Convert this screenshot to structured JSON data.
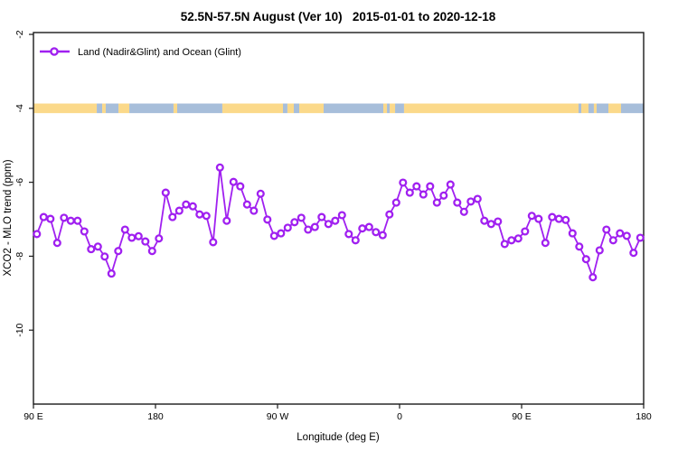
{
  "title": "52.5N-57.5N August (Ver 10)   2015-01-01 to 2020-12-18",
  "legend": {
    "label": "Land (Nadir&Glint) and Ocean (Glint)",
    "marker": "open-circle-on-line"
  },
  "colors": {
    "series": "#A020F0",
    "land_strip": "#FBD98A",
    "ocean_strip": "#A7BEDA",
    "axis": "#1a1a1a",
    "background": "#FFFFFF"
  },
  "chart_data": {
    "type": "line",
    "title": "52.5N-57.5N August (Ver 10)   2015-01-01 to 2020-12-18",
    "xlabel": "Longitude (deg E)",
    "ylabel": "XCO2 - MLO trend (ppm)",
    "x_tick_labels": [
      "90 E",
      "180",
      "90 W",
      "0",
      "90 E",
      "180"
    ],
    "x_tick_positions": [
      0,
      90,
      180,
      270,
      360,
      450
    ],
    "y_ticks": [
      -2,
      -4,
      -6,
      -8,
      -10
    ],
    "xlim": [
      0,
      450
    ],
    "ylim": [
      -12,
      -1.95
    ],
    "grid": false,
    "legend_position": "top-left-inside",
    "series": [
      {
        "name": "Land (Nadir&Glint) and Ocean (Glint)",
        "color": "#A020F0",
        "marker": "open-circle",
        "x_start": 2.5,
        "x_step": 5,
        "values": [
          -7.4,
          -6.94,
          -6.99,
          -7.64,
          -6.96,
          -7.04,
          -7.04,
          -7.33,
          -7.81,
          -7.74,
          -8.01,
          -8.47,
          -7.86,
          -7.28,
          -7.5,
          -7.46,
          -7.6,
          -7.86,
          -7.52,
          -6.28,
          -6.94,
          -6.77,
          -6.6,
          -6.65,
          -6.87,
          -6.91,
          -7.62,
          -5.6,
          -7.04,
          -5.99,
          -6.11,
          -6.6,
          -6.77,
          -6.31,
          -7.01,
          -7.45,
          -7.38,
          -7.23,
          -7.08,
          -6.96,
          -7.28,
          -7.21,
          -6.94,
          -7.13,
          -7.04,
          -6.89,
          -7.4,
          -7.57,
          -7.25,
          -7.21,
          -7.35,
          -7.43,
          -6.87,
          -6.55,
          -6.01,
          -6.28,
          -6.11,
          -6.33,
          -6.11,
          -6.55,
          -6.36,
          -6.06,
          -6.55,
          -6.8,
          -6.52,
          -6.45,
          -7.04,
          -7.13,
          -7.06,
          -7.67,
          -7.57,
          -7.52,
          -7.33,
          -6.91,
          -6.99,
          -7.64,
          -6.94,
          -6.99,
          -7.02,
          -7.38,
          -7.74,
          -8.08,
          -8.57,
          -7.84,
          -7.28,
          -7.57,
          -7.38,
          -7.45,
          -7.91,
          -7.5
        ]
      }
    ],
    "map_strip": {
      "description": "land/ocean mask strip drawn at y = -4",
      "y_center": -4,
      "land_color": "#FBD98A",
      "ocean_color": "#A7BEDA",
      "segments": [
        {
          "type": "land",
          "from": 0,
          "to": 46.7
        },
        {
          "type": "ocean",
          "from": 46.7,
          "to": 50.7
        },
        {
          "type": "land",
          "from": 50.7,
          "to": 53.3
        },
        {
          "type": "ocean",
          "from": 53.3,
          "to": 62.7
        },
        {
          "type": "land",
          "from": 62.7,
          "to": 70.7
        },
        {
          "type": "ocean",
          "from": 70.7,
          "to": 103.3
        },
        {
          "type": "land",
          "from": 103.3,
          "to": 106.0
        },
        {
          "type": "ocean",
          "from": 106.0,
          "to": 139.3
        },
        {
          "type": "land",
          "from": 139.3,
          "to": 184.0
        },
        {
          "type": "ocean",
          "from": 184.0,
          "to": 187.3
        },
        {
          "type": "land",
          "from": 187.3,
          "to": 192.0
        },
        {
          "type": "ocean",
          "from": 192.0,
          "to": 196.0
        },
        {
          "type": "land",
          "from": 196.0,
          "to": 214.0
        },
        {
          "type": "ocean",
          "from": 214.0,
          "to": 258.0
        },
        {
          "type": "land",
          "from": 258.0,
          "to": 260.7
        },
        {
          "type": "ocean",
          "from": 260.7,
          "to": 262.7
        },
        {
          "type": "land",
          "from": 262.7,
          "to": 266.7
        },
        {
          "type": "ocean",
          "from": 266.7,
          "to": 273.3
        },
        {
          "type": "land",
          "from": 273.3,
          "to": 402.0
        },
        {
          "type": "ocean",
          "from": 402.0,
          "to": 404.0
        },
        {
          "type": "land",
          "from": 404.0,
          "to": 409.3
        },
        {
          "type": "ocean",
          "from": 409.3,
          "to": 413.3
        },
        {
          "type": "land",
          "from": 413.3,
          "to": 415.3
        },
        {
          "type": "ocean",
          "from": 415.3,
          "to": 424.0
        },
        {
          "type": "land",
          "from": 424.0,
          "to": 433.3
        },
        {
          "type": "ocean",
          "from": 433.3,
          "to": 450.0
        }
      ]
    }
  }
}
